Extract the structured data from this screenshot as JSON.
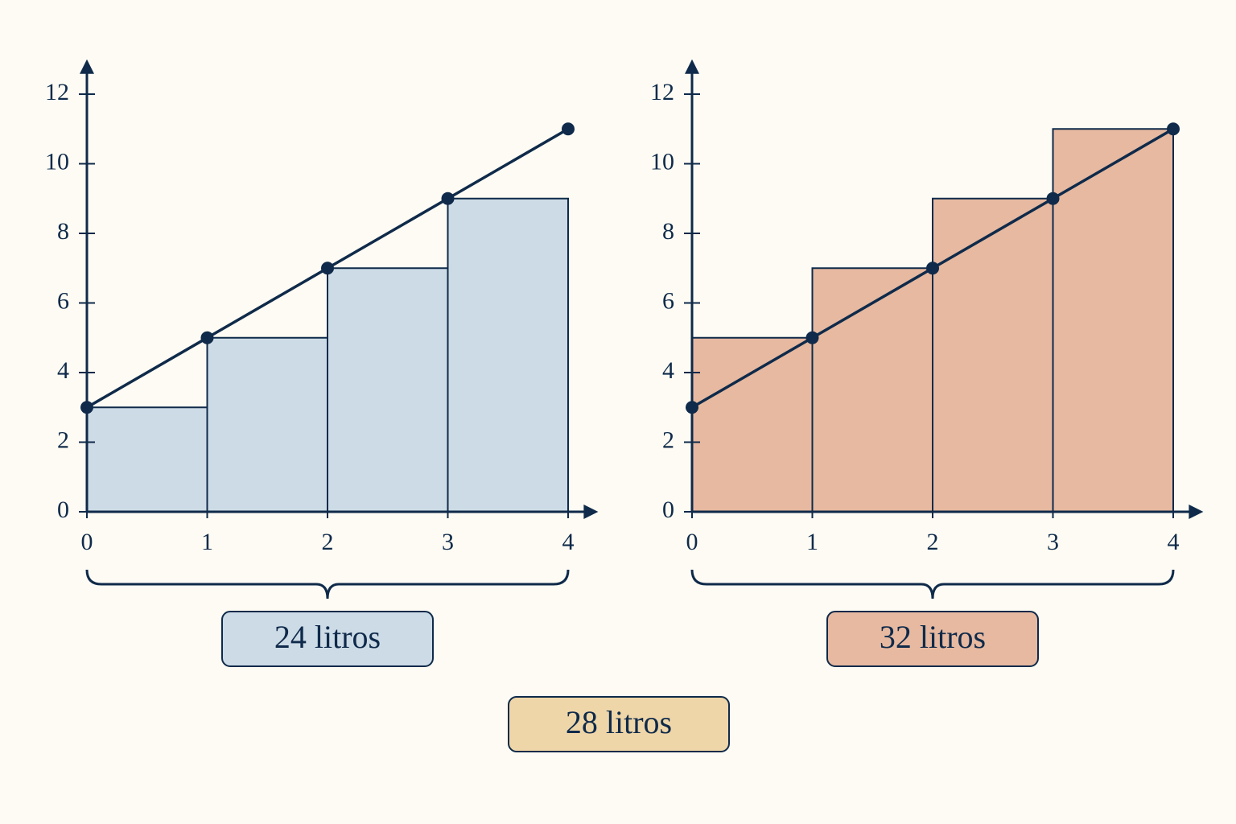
{
  "chart_data": [
    {
      "type": "histogram",
      "bins": [
        0,
        1,
        2,
        3,
        4
      ],
      "values": [
        3,
        5,
        7,
        9
      ],
      "color": "#cddbe6",
      "line": {
        "x": [
          0,
          1,
          2,
          3,
          4
        ],
        "values": [
          3,
          5,
          7,
          9,
          11
        ],
        "color": "#0f2a4a"
      },
      "xlim": [
        0,
        4.25
      ],
      "ylim": [
        0,
        13
      ],
      "xticks": [
        0,
        1,
        2,
        3,
        4
      ],
      "yticks": [
        0,
        2,
        4,
        6,
        8,
        10,
        12
      ],
      "label": "24 litros",
      "label_color": "#ccdbe6"
    },
    {
      "type": "histogram",
      "bins": [
        0,
        1,
        2,
        3,
        4
      ],
      "values": [
        5,
        7,
        9,
        11
      ],
      "color": "#e6b9a0",
      "line": {
        "x": [
          0,
          1,
          2,
          3,
          4
        ],
        "values": [
          3,
          5,
          7,
          9,
          11
        ],
        "color": "#0f2a4a"
      },
      "xlim": [
        0,
        4.25
      ],
      "ylim": [
        0,
        13
      ],
      "xticks": [
        0,
        1,
        2,
        3,
        4
      ],
      "yticks": [
        0,
        2,
        4,
        6,
        8,
        10,
        12
      ],
      "label": "32 litros",
      "label_color": "#e7b9a0"
    }
  ],
  "summary": {
    "label": "28 litros",
    "color": "#efd6a8"
  }
}
